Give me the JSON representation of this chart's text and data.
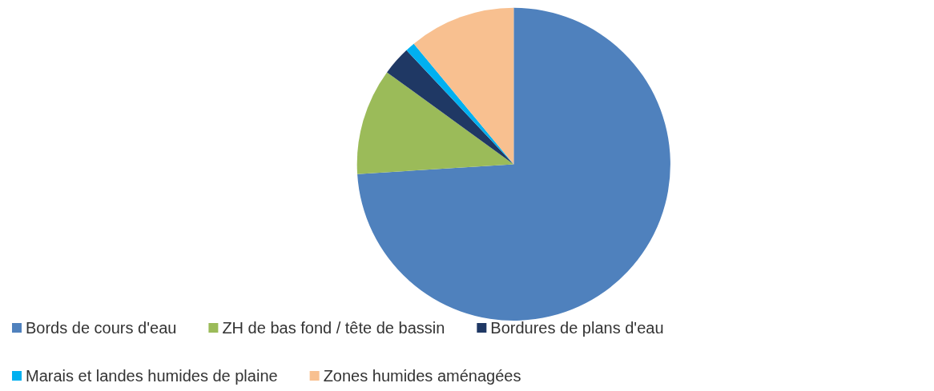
{
  "chart_data": {
    "type": "pie",
    "categories": [
      "Bords de cours d'eau",
      "ZH de bas fond / tête de bassin",
      "Bordures de plans d'eau",
      "Marais et landes humides de plaine",
      "Zones humides aménagées"
    ],
    "values": [
      74,
      11,
      3,
      1,
      11
    ],
    "colors": [
      "#4f81bd",
      "#9bbb59",
      "#1f3864",
      "#00b0f0",
      "#f8c090"
    ],
    "legend": "bottom"
  }
}
